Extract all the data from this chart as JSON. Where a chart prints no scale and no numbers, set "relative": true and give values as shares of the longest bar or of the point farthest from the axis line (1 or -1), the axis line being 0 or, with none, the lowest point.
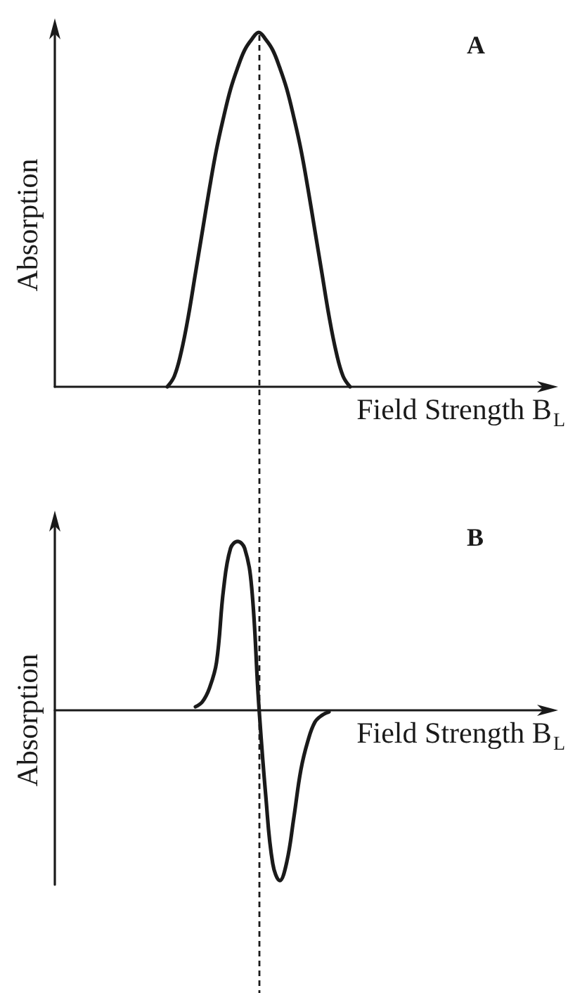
{
  "chart_data": [
    {
      "type": "line",
      "title": "A",
      "ylabel": "Absorption",
      "xlabel": "Field Strength B$_{L}$",
      "relative": true,
      "marker": "none",
      "color": "#1a1a1a",
      "categories": [
        null,
        null,
        null,
        null,
        null,
        null,
        null,
        null,
        null,
        null,
        null,
        null,
        null,
        null,
        null,
        null,
        null,
        null,
        null,
        null,
        null,
        null,
        null,
        null,
        null,
        null,
        null,
        null,
        null,
        null,
        null,
        null,
        null,
        null,
        null,
        null,
        null,
        null,
        null,
        null,
        null,
        null,
        null,
        null,
        null,
        null,
        null,
        null,
        null,
        null,
        null,
        null,
        null,
        null,
        null,
        null,
        null,
        null,
        null,
        null,
        null,
        null,
        null,
        null,
        null,
        null,
        null,
        null,
        null,
        null,
        null
      ],
      "values": [
        null,
        null,
        null,
        null,
        null,
        null,
        null,
        null,
        null,
        null,
        null,
        null,
        null,
        null,
        null,
        null,
        0,
        0.03,
        0.1,
        0.2,
        0.32,
        0.44,
        0.56,
        0.67,
        0.76,
        0.84,
        0.9,
        0.95,
        0.98,
        1,
        0.98,
        0.95,
        0.9,
        0.84,
        0.76,
        0.67,
        0.56,
        0.44,
        0.32,
        0.2,
        0.1,
        0.03,
        0,
        null,
        null,
        null,
        null,
        null,
        null,
        null,
        null,
        null,
        null,
        null,
        null,
        null,
        null,
        null,
        null,
        null,
        null,
        null,
        null,
        null,
        null,
        null,
        null,
        null,
        null,
        null,
        null
      ]
    },
    {
      "type": "line",
      "title": "B",
      "ylabel": "Absorption",
      "xlabel": "Field Strength B$_{L}$",
      "relative": true,
      "marker": "none",
      "color": "#1a1a1a",
      "categories": [
        null,
        null,
        null,
        null,
        null,
        null,
        null,
        null,
        null,
        null,
        null,
        null,
        null,
        null,
        null,
        null,
        null,
        null,
        null,
        null,
        null,
        null,
        null,
        null,
        null,
        null,
        null,
        null,
        null,
        null,
        null,
        null,
        null,
        null,
        null,
        null,
        null,
        null,
        null,
        null,
        null,
        null,
        null,
        null,
        null,
        null,
        null,
        null,
        null,
        null,
        null,
        null,
        null,
        null,
        null,
        null,
        null,
        null,
        null,
        null,
        null,
        null,
        null,
        null,
        null,
        null,
        null,
        null,
        null,
        null,
        null
      ],
      "values": [
        null,
        null,
        null,
        null,
        null,
        null,
        null,
        null,
        null,
        null,
        null,
        null,
        null,
        null,
        null,
        null,
        null,
        null,
        null,
        null,
        0.02,
        0.05,
        0.13,
        0.28,
        0.71,
        0.95,
        0.99,
        0.95,
        0.72,
        0.04,
        -0.5,
        -0.9,
        -1,
        -0.89,
        -0.63,
        -0.35,
        -0.18,
        -0.07,
        -0.03,
        -0.01,
        null,
        null,
        null,
        null,
        null,
        null,
        null,
        null,
        null,
        null,
        null,
        null,
        null,
        null,
        null,
        null,
        null,
        null,
        null,
        null,
        null,
        null,
        null,
        null,
        null,
        null,
        null,
        null,
        null,
        null,
        null
      ]
    }
  ]
}
